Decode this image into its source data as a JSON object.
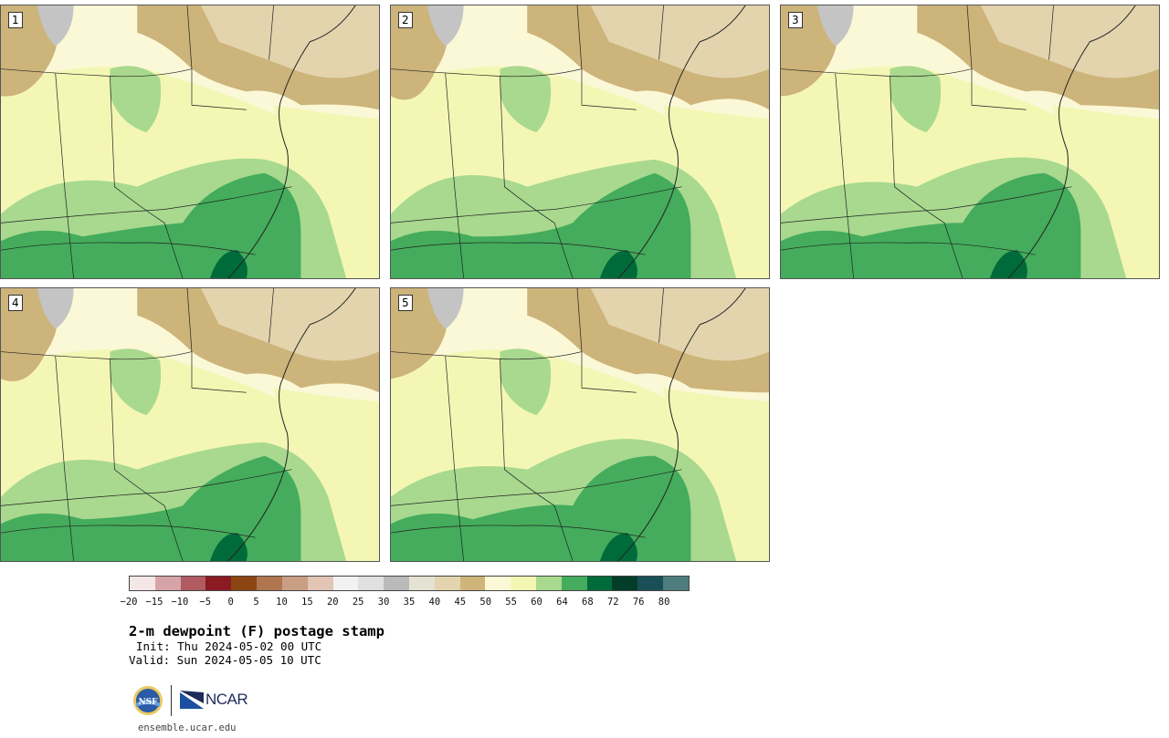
{
  "title": "2-m dewpoint (F) postage stamp",
  "init_text": "Init: Thu 2024-05-02 00 UTC",
  "valid_text": "Valid: Sun 2024-05-05 10 UTC",
  "website": "ensemble.ucar.edu",
  "logos": {
    "nsf": "NSF",
    "ncar": "NCAR"
  },
  "panels": [
    {
      "label": "1",
      "variant": 1
    },
    {
      "label": "2",
      "variant": 2
    },
    {
      "label": "3",
      "variant": 3
    },
    {
      "label": "4",
      "variant": 4
    },
    {
      "label": "5",
      "variant": 5
    }
  ],
  "colorbar": {
    "colors": [
      "#f5e6e6",
      "#d6a4a8",
      "#b05a62",
      "#8b1a22",
      "#8a4513",
      "#b07650",
      "#c99e82",
      "#e3c5b5",
      "#f2f2f2",
      "#e0e0e0",
      "#bababa",
      "#e4e2d2",
      "#e3d4ae",
      "#cfb57a",
      "#fbf8d8",
      "#f4f7b4",
      "#a8d98e",
      "#44ac5c",
      "#006b3a",
      "#043d27",
      "#195058",
      "#4e7d80"
    ],
    "tick_labels": [
      "−20",
      "−15",
      "−10",
      "−5",
      "0",
      "5",
      "10",
      "15",
      "20",
      "25",
      "30",
      "35",
      "40",
      "45",
      "50",
      "55",
      "60",
      "64",
      "68",
      "72",
      "76",
      "80"
    ]
  },
  "palette": {
    "dry_brown": "#cdb47a",
    "light_tan": "#e3d4ae",
    "gray": "#c4c4c4",
    "pale_yellow": "#fbf8d8",
    "light_yellow": "#f4f7b4",
    "light_green": "#a8d98e",
    "mid_green": "#44ac5c",
    "dark_green": "#006b3a"
  }
}
